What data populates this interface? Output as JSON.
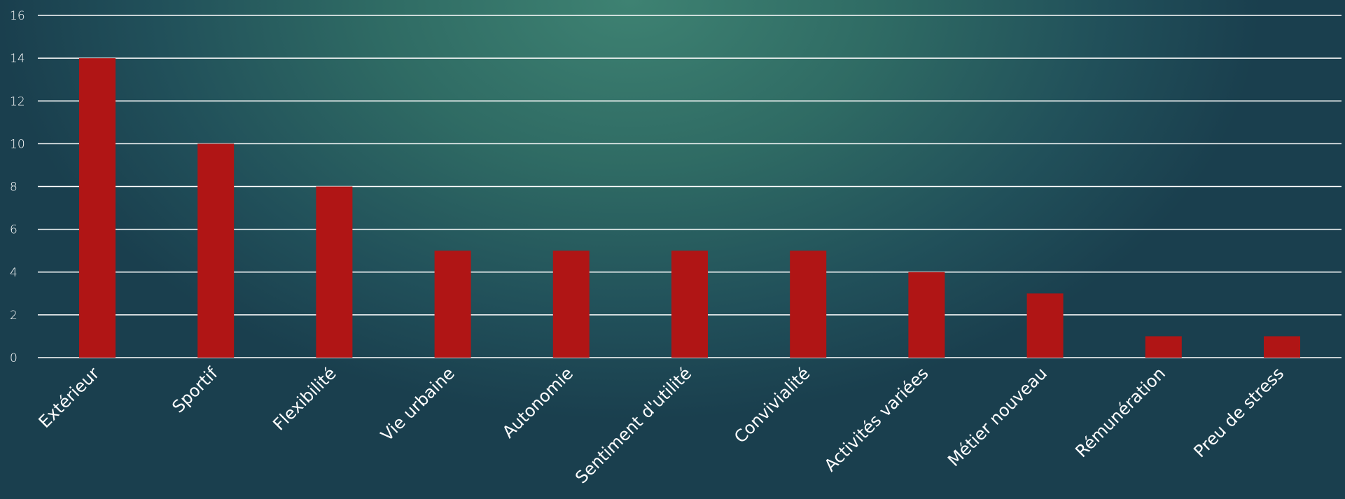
{
  "chart_data": {
    "type": "bar",
    "categories": [
      "Extérieur",
      "Sportif",
      "Flexibilité",
      "Vie urbaine",
      "Autonomie",
      "Sentiment d'utilité",
      "Convivialité",
      "Activités variées",
      "Métier nouveau",
      "Rémunération",
      "Preu de stress"
    ],
    "values": [
      14,
      10,
      8,
      5,
      5,
      5,
      5,
      4,
      3,
      1,
      1
    ],
    "ylim": [
      0,
      16
    ],
    "yticks": [
      0,
      2,
      4,
      6,
      8,
      10,
      12,
      14,
      16
    ],
    "grid": true,
    "title": "",
    "xlabel": "",
    "ylabel": "",
    "bar_color": "#b01515",
    "grid_color": "#ffffff",
    "text_color": "#ffffff"
  }
}
